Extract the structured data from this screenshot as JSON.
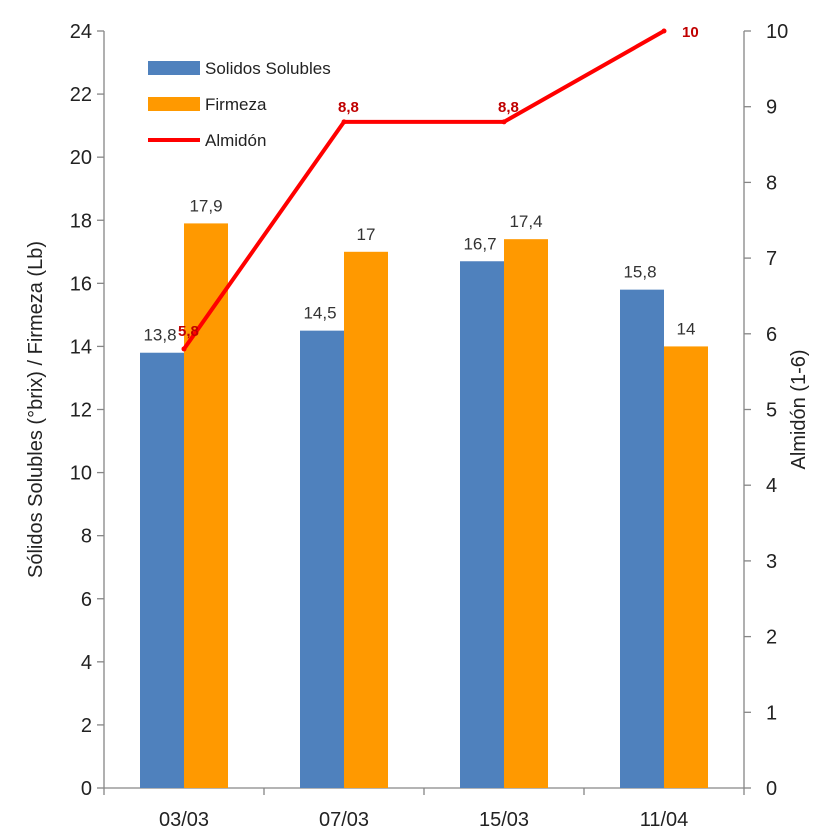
{
  "chart_data": {
    "type": "bar",
    "categories": [
      "03/03",
      "07/03",
      "15/03",
      "11/04"
    ],
    "series": [
      {
        "name": "Solidos Solubles",
        "type": "bar",
        "axis": "left",
        "color": "#4f81bd",
        "values": [
          13.8,
          14.5,
          16.7,
          15.8
        ],
        "labels": [
          "13,8",
          "14,5",
          "16,7",
          "15,8"
        ]
      },
      {
        "name": "Firmeza",
        "type": "bar",
        "axis": "left",
        "color": "#ff9900",
        "values": [
          17.9,
          17,
          17.4,
          14
        ],
        "labels": [
          "17,9",
          "17",
          "17,4",
          "14"
        ]
      },
      {
        "name": "Almidón",
        "type": "line",
        "axis": "right",
        "color": "#ff0000",
        "values": [
          5.8,
          8.8,
          8.8,
          10
        ],
        "labels": [
          "5,8",
          "8,8",
          "8,8",
          "10"
        ]
      }
    ],
    "ylabel": "Sólidos Solubles (°brix) / Firmeza (Lb)",
    "y2label": "Almidón (1-6)",
    "ylim": [
      0,
      24
    ],
    "yticks": [
      "0",
      "2",
      "4",
      "6",
      "8",
      "10",
      "12",
      "14",
      "16",
      "18",
      "20",
      "22",
      "24"
    ],
    "y2lim": [
      0,
      10
    ],
    "y2ticks": [
      "0",
      "1",
      "2",
      "3",
      "4",
      "5",
      "6",
      "7",
      "8",
      "9",
      "10"
    ],
    "grid": false,
    "legend_position": "top-left"
  }
}
